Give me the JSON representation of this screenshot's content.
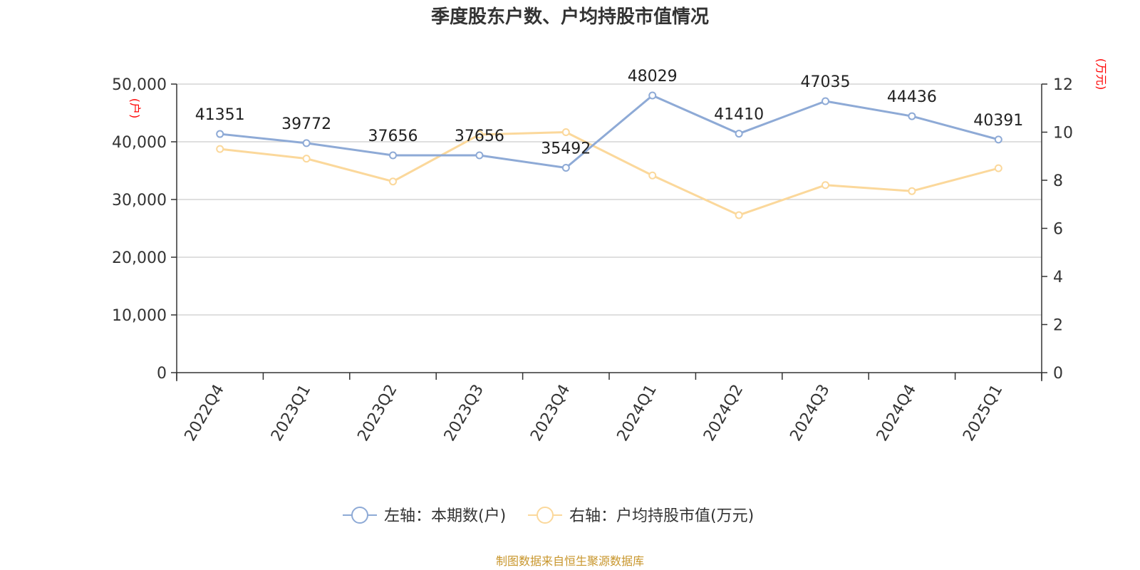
{
  "title": "季度股东户数、户均持股市值情况",
  "source": "制图数据来自恒生聚源数据库",
  "colors": {
    "left_series": "#8eaad6",
    "right_series": "#fbd89b",
    "unit_text": "#ff0000",
    "source_text": "#c8962c",
    "grid": "#cccccc"
  },
  "chart_data": {
    "type": "line",
    "categories": [
      "2022Q4",
      "2023Q1",
      "2023Q2",
      "2023Q3",
      "2023Q4",
      "2024Q1",
      "2024Q2",
      "2024Q3",
      "2024Q4",
      "2025Q1"
    ],
    "left_axis": {
      "unit": "(户)",
      "ylim": [
        0,
        50000
      ],
      "ticks": [
        "0",
        "10,000",
        "20,000",
        "30,000",
        "40,000",
        "50,000"
      ],
      "tick_values": [
        0,
        10000,
        20000,
        30000,
        40000,
        50000
      ]
    },
    "right_axis": {
      "unit": "(万元)",
      "ylim": [
        0,
        12
      ],
      "ticks": [
        "0",
        "2",
        "4",
        "6",
        "8",
        "10",
        "12"
      ],
      "tick_values": [
        0,
        2,
        4,
        6,
        8,
        10,
        12
      ]
    },
    "series": [
      {
        "name": "左轴：本期数(户)",
        "axis": "left",
        "values": [
          41351,
          39772,
          37656,
          37656,
          35492,
          48029,
          41410,
          47035,
          44436,
          40391
        ],
        "labels": [
          "41351",
          "39772",
          "37656",
          "37656",
          "35492",
          "48029",
          "41410",
          "47035",
          "44436",
          "40391"
        ]
      },
      {
        "name": "右轴：户均持股市值(万元)",
        "axis": "right",
        "values": [
          9.3,
          8.9,
          7.95,
          9.9,
          10.0,
          8.2,
          6.55,
          7.8,
          7.55,
          8.5
        ]
      }
    ],
    "grid": true,
    "legend_position": "bottom-center"
  }
}
